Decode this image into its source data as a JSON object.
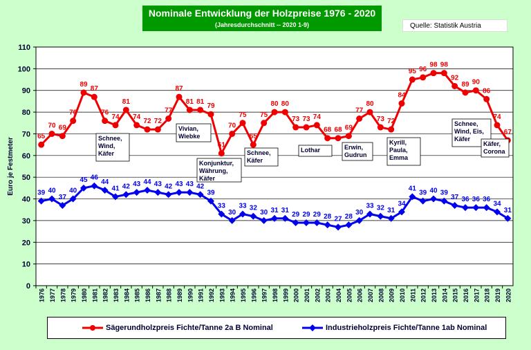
{
  "title": "Nominale Entwicklung der Holzpreise 1976 - 2020",
  "subtitle": "(Jahresdurchschnitt -- 2020 1-9)",
  "source": "Quelle: Statistik Austria",
  "colors": {
    "red": "#ee0000",
    "blue": "#0000ee",
    "plot_bg": "#ffffff",
    "page_bg": "#ccffcc",
    "title_bg": "#009900"
  },
  "chart_data": {
    "type": "line",
    "title": "Nominale Entwicklung der Holzpreise 1976 - 2020",
    "xlabel": "",
    "ylabel": "Euro je Festmeter",
    "ylim": [
      0,
      110
    ],
    "yticks": [
      "0",
      "10",
      "20",
      "30",
      "40",
      "50",
      "60",
      "70",
      "80",
      "90",
      "100",
      "110"
    ],
    "grid": true,
    "categories": [
      "1976",
      "1977",
      "1978",
      "1979",
      "1980",
      "1981",
      "1982",
      "1983",
      "1984",
      "1985",
      "1986",
      "1987",
      "1988",
      "1989",
      "1990",
      "1991",
      "1992",
      "1993",
      "1994",
      "1995",
      "1996",
      "1997",
      "1998",
      "1999",
      "2000",
      "2001",
      "2002",
      "2003",
      "2004",
      "2005",
      "2006",
      "2007",
      "2008",
      "2009",
      "2010",
      "2011",
      "2012",
      "2013",
      "2014",
      "2015",
      "2016",
      "2017",
      "2018",
      "2019",
      "2020"
    ],
    "series": [
      {
        "name": "Sägerundholzpreis Fichte/Tanne 2a B Nominal",
        "color": "#ee0000",
        "values": [
          65,
          70,
          69,
          76,
          89,
          87,
          76,
          74,
          81,
          74,
          72,
          72,
          77,
          87,
          81,
          81,
          79,
          61,
          70,
          75,
          65,
          75,
          80,
          80,
          73,
          73,
          74,
          68,
          68,
          69,
          77,
          80,
          73,
          72,
          84,
          95,
          96,
          98,
          98,
          92,
          89,
          90,
          86,
          74,
          67
        ],
        "labels": [
          "65",
          "70",
          "69",
          "76",
          "89",
          "87",
          "76",
          "74",
          "81",
          "74",
          "72",
          "72",
          "77",
          "87",
          "81",
          "81",
          "79",
          "61",
          "70",
          "75",
          "65",
          "75",
          "80",
          "80",
          "73",
          "73",
          "74",
          "68",
          "68",
          "69",
          "77",
          "80",
          "73",
          "72",
          "84",
          "95",
          "96",
          "98",
          "98",
          "92",
          "89",
          "90",
          "86",
          "74",
          "67"
        ]
      },
      {
        "name": "Industrieholzpreis Fichte/Tanne 1ab Nominal",
        "color": "#0000ee",
        "values": [
          39,
          40,
          37,
          40,
          45,
          46,
          44,
          41,
          42,
          43,
          44,
          43,
          42,
          43,
          43,
          42,
          39,
          33,
          30,
          33,
          32,
          30,
          31,
          31,
          29,
          29,
          29,
          28,
          27,
          28,
          30,
          33,
          32,
          31,
          34,
          41,
          39,
          40,
          39,
          37,
          36,
          36,
          36,
          34,
          31
        ],
        "labels": [
          "39",
          "40",
          "37",
          "40",
          "45",
          "46",
          "44",
          "41",
          "42",
          "43",
          "44",
          "43",
          "42",
          "43",
          "43",
          "42",
          "39",
          "33",
          "30",
          "33",
          "32",
          "30",
          "31",
          "31",
          "29",
          "29",
          "29",
          "28",
          "27",
          "28",
          "30",
          "33",
          "32",
          "31",
          "34",
          "41",
          "39",
          "40",
          "39",
          "37",
          "36",
          "36",
          "36",
          "34",
          "31"
        ]
      }
    ],
    "annotations": [
      {
        "lines": [
          "Schnee,",
          "Wind,",
          "Käfer"
        ]
      },
      {
        "lines": [
          "Vivian,",
          "Wiebke"
        ]
      },
      {
        "lines": [
          "Konjunktur,",
          "Währung,",
          "Käfer"
        ]
      },
      {
        "lines": [
          "Schnee,",
          "Käfer"
        ]
      },
      {
        "lines": [
          "Lothar"
        ]
      },
      {
        "lines": [
          "Erwin,",
          "Gudrun"
        ]
      },
      {
        "lines": [
          "Kyrill,",
          "Paula,",
          "Emma"
        ]
      },
      {
        "lines": [
          "Schnee,",
          "Wind, Eis,",
          "Käfer"
        ]
      },
      {
        "lines": [
          "Käfer,",
          "Corona"
        ]
      }
    ],
    "legend": [
      "Sägerundholzpreis Fichte/Tanne 2a B Nominal",
      "Industrieholzpreis Fichte/Tanne 1ab Nominal"
    ]
  }
}
